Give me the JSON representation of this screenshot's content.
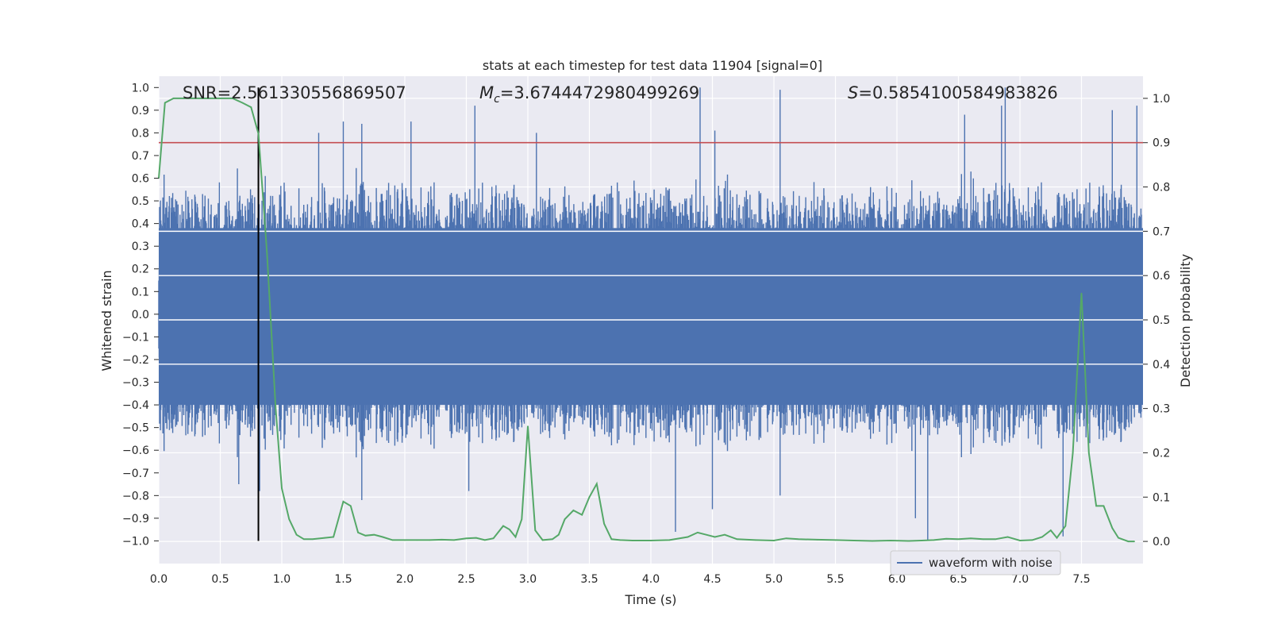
{
  "chart_data": {
    "type": "line",
    "title": "stats at each timestep for test data 11904 [signal=0]",
    "xlabel": "Time (s)",
    "ylabel_left": "Whitened strain",
    "ylabel_right": "Detection probability",
    "xlim": [
      0.0,
      8.0
    ],
    "ylim_left": [
      -1.1,
      1.05
    ],
    "ylim_right": [
      -0.05,
      1.05
    ],
    "x_ticks": [
      "0.0",
      "0.5",
      "1.0",
      "1.5",
      "2.0",
      "2.5",
      "3.0",
      "3.5",
      "4.0",
      "4.5",
      "5.0",
      "5.5",
      "6.0",
      "6.5",
      "7.0",
      "7.5"
    ],
    "y_ticks_left": [
      "1.0",
      "0.9",
      "0.8",
      "0.7",
      "0.6",
      "0.5",
      "0.4",
      "0.3",
      "0.2",
      "0.1",
      "0.0",
      "-0.1",
      "-0.2",
      "-0.3",
      "-0.4",
      "-0.5",
      "-0.6",
      "-0.7",
      "-0.8",
      "-0.9",
      "-1.0"
    ],
    "y_ticks_right": [
      "1.0",
      "0.9",
      "0.8",
      "0.7",
      "0.6",
      "0.5",
      "0.4",
      "0.3",
      "0.2",
      "0.1",
      "0.0"
    ],
    "grid": true,
    "legend_position": "lower-right",
    "annotations": {
      "snr": "SNR=2.561330556869507",
      "mc_symbol": "M",
      "mc_sub": "c",
      "mc_value": "=3.6744472980499269",
      "s_symbol": "S",
      "s_value": "=0.5854100584983826"
    },
    "series": [
      {
        "name": "waveform with noise",
        "color": "#4c72b0",
        "axis": "left",
        "envelope": "dense noise filling approximately -0.4 to 0.4 with sharp spikes",
        "spikes": [
          {
            "x": 1.3,
            "y": 0.8
          },
          {
            "x": 1.5,
            "y": 0.85
          },
          {
            "x": 1.65,
            "y": 0.84
          },
          {
            "x": 2.05,
            "y": 0.85
          },
          {
            "x": 2.57,
            "y": 0.92
          },
          {
            "x": 3.07,
            "y": 0.8
          },
          {
            "x": 4.4,
            "y": 1.0
          },
          {
            "x": 4.52,
            "y": 0.81
          },
          {
            "x": 5.05,
            "y": 0.99
          },
          {
            "x": 6.55,
            "y": 0.88
          },
          {
            "x": 6.85,
            "y": 0.92
          },
          {
            "x": 6.88,
            "y": 1.0
          },
          {
            "x": 7.75,
            "y": 0.9
          },
          {
            "x": 7.95,
            "y": 0.92
          },
          {
            "x": 0.65,
            "y": -0.75
          },
          {
            "x": 0.82,
            "y": -0.78
          },
          {
            "x": 1.65,
            "y": -0.82
          },
          {
            "x": 2.52,
            "y": -0.78
          },
          {
            "x": 4.2,
            "y": -0.96
          },
          {
            "x": 4.5,
            "y": -0.86
          },
          {
            "x": 5.05,
            "y": -0.8
          },
          {
            "x": 6.25,
            "y": -1.0
          },
          {
            "x": 6.15,
            "y": -0.9
          },
          {
            "x": 7.35,
            "y": -0.98
          }
        ]
      },
      {
        "name": "Detection probability",
        "color": "#55a868",
        "axis": "right",
        "x": [
          0.0,
          0.05,
          0.12,
          0.2,
          0.3,
          0.4,
          0.5,
          0.6,
          0.68,
          0.75,
          0.81,
          0.88,
          0.95,
          1.0,
          1.06,
          1.12,
          1.18,
          1.25,
          1.35,
          1.42,
          1.5,
          1.56,
          1.62,
          1.68,
          1.75,
          1.82,
          1.9,
          2.0,
          2.1,
          2.2,
          2.3,
          2.4,
          2.5,
          2.58,
          2.65,
          2.72,
          2.8,
          2.85,
          2.9,
          2.95,
          3.0,
          3.06,
          3.12,
          3.2,
          3.25,
          3.3,
          3.37,
          3.44,
          3.5,
          3.56,
          3.62,
          3.68,
          3.75,
          3.85,
          4.0,
          4.15,
          4.3,
          4.38,
          4.45,
          4.52,
          4.6,
          4.7,
          4.85,
          5.0,
          5.1,
          5.2,
          5.35,
          5.5,
          5.65,
          5.8,
          5.95,
          6.1,
          6.2,
          6.3,
          6.4,
          6.5,
          6.6,
          6.7,
          6.8,
          6.9,
          7.0,
          7.1,
          7.18,
          7.25,
          7.3,
          7.37,
          7.43,
          7.5,
          7.56,
          7.62,
          7.68,
          7.75,
          7.8,
          7.88,
          7.93
        ],
        "y": [
          0.82,
          0.99,
          1.0,
          1.0,
          1.0,
          1.0,
          1.0,
          1.0,
          0.99,
          0.98,
          0.92,
          0.65,
          0.3,
          0.12,
          0.05,
          0.015,
          0.005,
          0.005,
          0.008,
          0.01,
          0.09,
          0.08,
          0.02,
          0.013,
          0.015,
          0.01,
          0.003,
          0.003,
          0.003,
          0.003,
          0.004,
          0.003,
          0.007,
          0.008,
          0.003,
          0.007,
          0.035,
          0.027,
          0.01,
          0.05,
          0.26,
          0.025,
          0.003,
          0.005,
          0.015,
          0.05,
          0.07,
          0.06,
          0.1,
          0.13,
          0.04,
          0.005,
          0.003,
          0.002,
          0.002,
          0.003,
          0.01,
          0.02,
          0.015,
          0.01,
          0.015,
          0.005,
          0.003,
          0.002,
          0.007,
          0.005,
          0.004,
          0.003,
          0.002,
          0.001,
          0.002,
          0.001,
          0.002,
          0.003,
          0.006,
          0.005,
          0.007,
          0.005,
          0.005,
          0.01,
          0.002,
          0.003,
          0.01,
          0.025,
          0.008,
          0.035,
          0.2,
          0.56,
          0.2,
          0.08,
          0.08,
          0.03,
          0.008,
          0.0,
          0.0
        ]
      }
    ],
    "threshold_line": {
      "y_right": 0.9,
      "color": "#c44e52"
    },
    "vertical_marker": {
      "x": 0.81,
      "y_left_range": [
        -1.0,
        1.0
      ],
      "color": "#000000"
    }
  }
}
